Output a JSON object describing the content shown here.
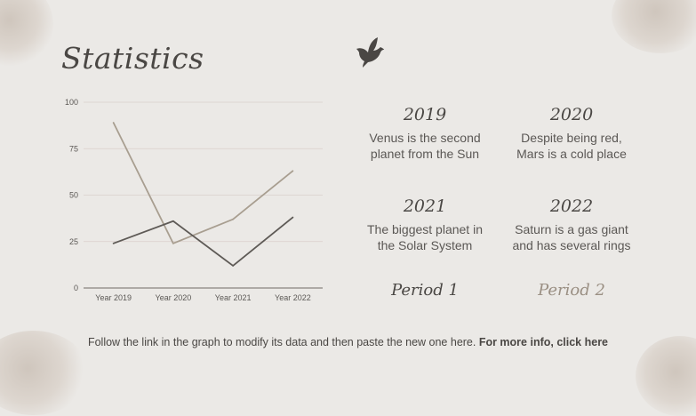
{
  "title": "Statistics",
  "icons": {
    "bird": "bird-icon"
  },
  "chart_data": {
    "type": "line",
    "categories": [
      "Year 2019",
      "Year  2020",
      "Year  2021",
      "Year  2022"
    ],
    "series": [
      {
        "values": [
          89,
          24,
          37,
          63
        ],
        "color": "#a89e90"
      },
      {
        "values": [
          24,
          36,
          12,
          38
        ],
        "color": "#5e5a56"
      }
    ],
    "ylim": [
      0,
      100
    ],
    "yticks": [
      "0",
      "25",
      "50",
      "75",
      "100"
    ],
    "grid": true,
    "legend": "none"
  },
  "cards": [
    {
      "year": "2019",
      "desc_line1": "Venus is the second",
      "desc_line2": "planet from the Sun"
    },
    {
      "year": "2020",
      "desc_line1": "Despite being red,",
      "desc_line2": "Mars is a cold place"
    },
    {
      "year": "2021",
      "desc_line1": "The biggest planet in",
      "desc_line2": "the Solar System"
    },
    {
      "year": "2022",
      "desc_line1": "Saturn is a gas giant",
      "desc_line2": "and has several rings"
    }
  ],
  "periods": [
    "Period 1",
    "Period 2"
  ],
  "footer": {
    "text": "Follow the link in the graph to modify its data and then paste the new one here. ",
    "link": "For more info, click here"
  }
}
